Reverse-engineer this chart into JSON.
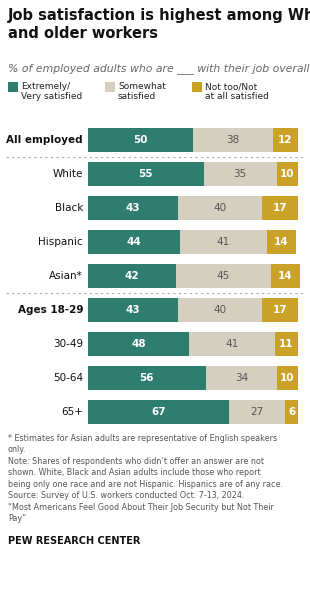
{
  "title": "Job satisfaction is highest among White\nand older workers",
  "subtitle": "% of employed adults who are ___ with their job overall",
  "categories": [
    "All employed",
    "White",
    "Black",
    "Hispanic",
    "Asian*",
    "Ages 18-29",
    "30-49",
    "50-64",
    "65+"
  ],
  "extremely_satisfied": [
    50,
    55,
    43,
    44,
    42,
    43,
    48,
    56,
    67
  ],
  "somewhat_satisfied": [
    38,
    35,
    40,
    41,
    45,
    40,
    41,
    34,
    27
  ],
  "not_satisfied": [
    12,
    10,
    17,
    14,
    14,
    17,
    11,
    10,
    6
  ],
  "color_extremely": "#2e7d6e",
  "color_somewhat": "#d5cfc0",
  "color_not": "#c9a227",
  "legend_labels": [
    "Extremely/\nVery satisfied",
    "Somewhat\nsatisfied",
    "Not too/Not\nat all satisfied"
  ],
  "footer_notes": "* Estimates for Asian adults are representative of English speakers\nonly.\nNote: Shares of respondents who didn’t offer an answer are not\nshown. White, Black and Asian adults include those who report\nbeing only one race and are not Hispanic. Hispanics are of any race.\nSource: Survey of U.S. workers conducted Oct. 7-13, 2024.\n“Most Americans Feel Good About Their Job Security but Not Their\nPay”",
  "pew_label": "PEW RESEARCH CENTER",
  "dotted_after_indices": [
    0,
    4
  ],
  "bold_categories": [
    "All employed",
    "Ages 18-29"
  ],
  "background_color": "#ffffff",
  "bar_text_color_dark": "#555555",
  "bar_text_color_light": "#ffffff"
}
